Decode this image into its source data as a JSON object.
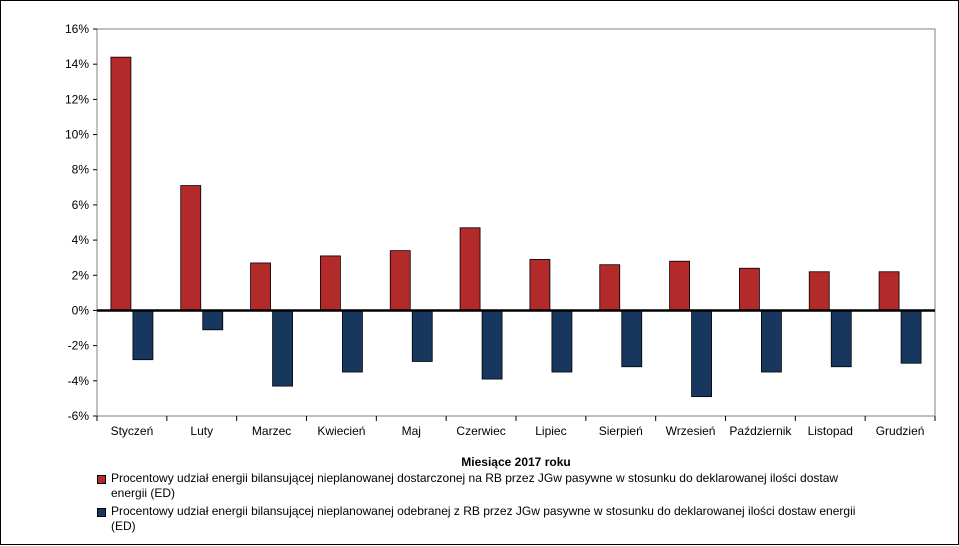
{
  "chart_data": {
    "type": "bar",
    "categories": [
      "Styczeń",
      "Luty",
      "Marzec",
      "Kwiecień",
      "Maj",
      "Czerwiec",
      "Lipiec",
      "Sierpień",
      "Wrzesień",
      "Październik",
      "Listopad",
      "Grudzień"
    ],
    "series": [
      {
        "name": "Procentowy udział energii bilansującej nieplanowanej dostarczonej na RB przez JGw pasywne w stosunku do deklarowanej ilości dostaw energii (ED)",
        "color": "#b22a2a",
        "values": [
          14.4,
          7.1,
          2.7,
          3.1,
          3.4,
          4.7,
          2.9,
          2.6,
          2.8,
          2.4,
          2.2,
          2.2
        ]
      },
      {
        "name": "Procentowy udział energii bilansującej nieplanowanej odebranej z RB przez JGw pasywne w stosunku do deklarowanej ilości dostaw energii (ED)",
        "color": "#17375e",
        "values": [
          -2.8,
          -1.1,
          -4.3,
          -3.5,
          -2.9,
          -3.9,
          -3.5,
          -3.2,
          -4.9,
          -3.5,
          -3.2,
          -3.0
        ]
      }
    ],
    "xlabel": "Miesiące 2017  roku",
    "ylabel": "",
    "ylim": [
      -6,
      16
    ],
    "yticks": [
      -6,
      -4,
      -2,
      0,
      2,
      4,
      6,
      8,
      10,
      12,
      14,
      16
    ],
    "ytick_labels": [
      "-6%",
      "-4%",
      "-2%",
      "0%",
      "2%",
      "4%",
      "6%",
      "8%",
      "10%",
      "12%",
      "14%",
      "16%"
    ],
    "grid": false,
    "legend_position": "bottom"
  }
}
